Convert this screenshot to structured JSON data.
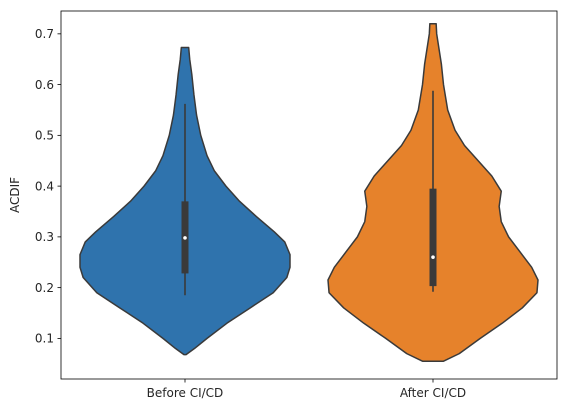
{
  "chart_data": {
    "type": "violin",
    "title": "",
    "xlabel": "",
    "ylabel": "ACDIF",
    "ylim": [
      0.02,
      0.745
    ],
    "yticks": [
      0.1,
      0.2,
      0.3,
      0.4,
      0.5,
      0.6,
      0.7
    ],
    "ytick_labels": [
      "0.1",
      "0.2",
      "0.3",
      "0.4",
      "0.5",
      "0.6",
      "0.7"
    ],
    "grid": false,
    "categories": [
      "Before CI/CD",
      "After CI/CD"
    ],
    "series": [
      {
        "color": "#2f73ad",
        "edge_color": "#3a3a3a",
        "range": [
          0.068,
          0.673
        ],
        "whiskers": [
          0.185,
          0.562
        ],
        "quartiles": [
          0.228,
          0.37
        ],
        "median": 0.298,
        "density": [
          [
            0.068,
            0.01
          ],
          [
            0.08,
            0.09
          ],
          [
            0.1,
            0.21
          ],
          [
            0.13,
            0.4
          ],
          [
            0.16,
            0.62
          ],
          [
            0.19,
            0.84
          ],
          [
            0.22,
            0.97
          ],
          [
            0.24,
            1.0
          ],
          [
            0.265,
            1.0
          ],
          [
            0.29,
            0.95
          ],
          [
            0.31,
            0.85
          ],
          [
            0.34,
            0.68
          ],
          [
            0.37,
            0.52
          ],
          [
            0.4,
            0.39
          ],
          [
            0.43,
            0.28
          ],
          [
            0.46,
            0.21
          ],
          [
            0.5,
            0.15
          ],
          [
            0.54,
            0.11
          ],
          [
            0.58,
            0.085
          ],
          [
            0.62,
            0.065
          ],
          [
            0.65,
            0.045
          ],
          [
            0.673,
            0.035
          ]
        ]
      },
      {
        "color": "#e6822b",
        "edge_color": "#3a3a3a",
        "range": [
          0.055,
          0.72
        ],
        "whiskers": [
          0.192,
          0.588
        ],
        "quartiles": [
          0.203,
          0.395
        ],
        "median": 0.26,
        "density": [
          [
            0.055,
            0.1
          ],
          [
            0.07,
            0.25
          ],
          [
            0.1,
            0.45
          ],
          [
            0.13,
            0.66
          ],
          [
            0.16,
            0.85
          ],
          [
            0.19,
            0.99
          ],
          [
            0.215,
            1.0
          ],
          [
            0.24,
            0.94
          ],
          [
            0.27,
            0.83
          ],
          [
            0.3,
            0.72
          ],
          [
            0.33,
            0.65
          ],
          [
            0.36,
            0.63
          ],
          [
            0.39,
            0.65
          ],
          [
            0.42,
            0.56
          ],
          [
            0.45,
            0.43
          ],
          [
            0.48,
            0.3
          ],
          [
            0.51,
            0.21
          ],
          [
            0.55,
            0.14
          ],
          [
            0.6,
            0.1
          ],
          [
            0.64,
            0.08
          ],
          [
            0.68,
            0.05
          ],
          [
            0.7,
            0.035
          ],
          [
            0.72,
            0.03
          ]
        ]
      }
    ]
  }
}
